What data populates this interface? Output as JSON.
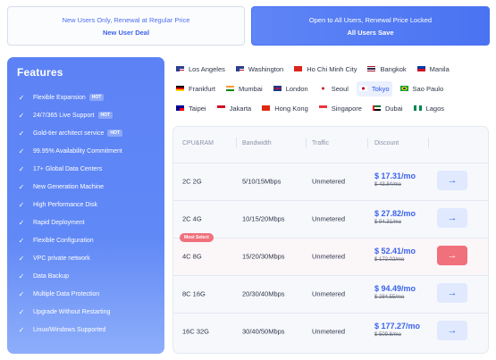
{
  "deals": {
    "new_user": {
      "line1": "New Users Only, Renewal at Regular Price",
      "line2": "New User Deal"
    },
    "all_users": {
      "line1": "Open to All Users, Renewal Price Locked",
      "line2": "All Users Save"
    }
  },
  "features": {
    "title": "Features",
    "hot_label": "HOT",
    "items": [
      {
        "label": "Flexible Expansion",
        "hot": true
      },
      {
        "label": "24/7/365 Live Support",
        "hot": true
      },
      {
        "label": "Gold-tier architect service",
        "hot": true
      },
      {
        "label": "99.95% Availability Commitment",
        "hot": false
      },
      {
        "label": "17+ Global Data Centers",
        "hot": false
      },
      {
        "label": "New Generation Machine",
        "hot": false
      },
      {
        "label": "High Performance Disk",
        "hot": false
      },
      {
        "label": "Rapid Deployment",
        "hot": false
      },
      {
        "label": "Flexible Configuration",
        "hot": false
      },
      {
        "label": "VPC private network",
        "hot": false
      },
      {
        "label": "Data Backup",
        "hot": false
      },
      {
        "label": "Multiple Data Protection",
        "hot": false
      },
      {
        "label": "Upgrade Without Restarting",
        "hot": false
      },
      {
        "label": "Linux/Windows Supported",
        "hot": false
      }
    ]
  },
  "locations": {
    "rows": [
      [
        {
          "name": "Los Angeles",
          "flag": "us"
        },
        {
          "name": "Washington",
          "flag": "us"
        },
        {
          "name": "Ho Chi Minh City",
          "flag": "vn"
        },
        {
          "name": "Bangkok",
          "flag": "th"
        },
        {
          "name": "Manila",
          "flag": "ph"
        }
      ],
      [
        {
          "name": "Frankfurt",
          "flag": "de"
        },
        {
          "name": "Mumbai",
          "flag": "in"
        },
        {
          "name": "London",
          "flag": "gb"
        },
        {
          "name": "Seoul",
          "flag": "kr"
        },
        {
          "name": "Tokyo",
          "flag": "jp",
          "active": true
        },
        {
          "name": "Sao Paulo",
          "flag": "br"
        }
      ],
      [
        {
          "name": "Taipei",
          "flag": "tw"
        },
        {
          "name": "Jakarta",
          "flag": "id"
        },
        {
          "name": "Hong Kong",
          "flag": "hk"
        },
        {
          "name": "Singapore",
          "flag": "sg"
        },
        {
          "name": "Dubai",
          "flag": "ae"
        },
        {
          "name": "Lagos",
          "flag": "ng"
        }
      ]
    ]
  },
  "pricing": {
    "headers": {
      "plan": "CPU&RAM",
      "bandwidth": "Bandwidth",
      "traffic": "Traffic",
      "discount": "Discount"
    },
    "badge": "Most Select",
    "go_symbol": "→",
    "rows": [
      {
        "plan": "2C 2G",
        "bandwidth": "5/10/15Mbps",
        "traffic": "Unmetered",
        "price": "$ 17.31/mo",
        "old_price": "$ 43.84/mo",
        "selected": false
      },
      {
        "plan": "2C 4G",
        "bandwidth": "10/15/20Mbps",
        "traffic": "Unmetered",
        "price": "$ 27.82/mo",
        "old_price": "$ 94.31/mo",
        "selected": false
      },
      {
        "plan": "4C 8G",
        "bandwidth": "15/20/30Mbps",
        "traffic": "Unmetered",
        "price": "$ 52.41/mo",
        "old_price": "$ 172.02/mo",
        "selected": true
      },
      {
        "plan": "8C 16G",
        "bandwidth": "20/30/40Mbps",
        "traffic": "Unmetered",
        "price": "$ 94.49/mo",
        "old_price": "$ 284.55/mo",
        "selected": false
      },
      {
        "plan": "16C 32G",
        "bandwidth": "30/40/50Mbps",
        "traffic": "Unmetered",
        "price": "$ 177.27/mo",
        "old_price": "$ 509.6/mo",
        "selected": false
      }
    ]
  }
}
